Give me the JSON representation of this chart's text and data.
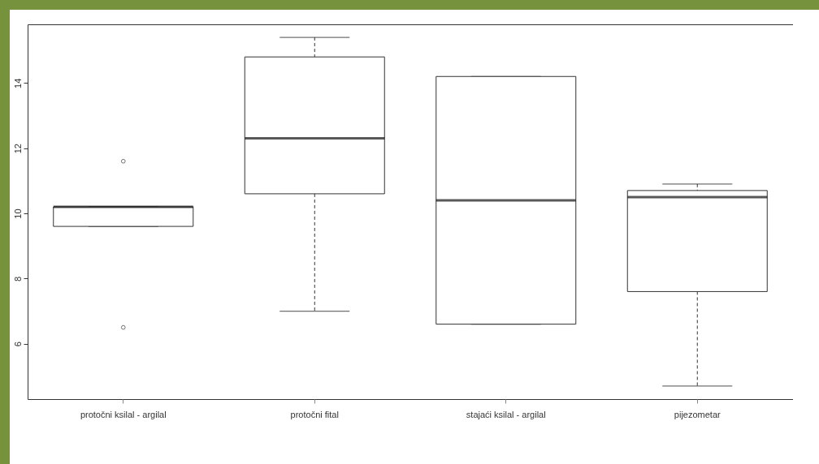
{
  "chart_data": {
    "type": "box",
    "categories": [
      "protočni ksilal - argilal",
      "protočni fital",
      "stajaći ksilal - argilal",
      "pijezometar"
    ],
    "boxes": [
      {
        "low": 9.6,
        "q1": 9.6,
        "median": 10.2,
        "q3": 10.2,
        "high": 10.2,
        "outliers": [
          11.6,
          6.5
        ]
      },
      {
        "low": 7.0,
        "q1": 10.6,
        "median": 12.3,
        "q3": 14.8,
        "high": 15.4
      },
      {
        "low": 6.6,
        "q1": 6.6,
        "median": 10.4,
        "q3": 14.2,
        "high": 14.2
      },
      {
        "low": 4.7,
        "q1": 7.6,
        "median": 10.5,
        "q3": 10.7,
        "high": 10.9
      }
    ],
    "ylim": [
      4.3,
      15.8
    ],
    "yticks": [
      6,
      8,
      10,
      12,
      14
    ],
    "grid": false
  }
}
